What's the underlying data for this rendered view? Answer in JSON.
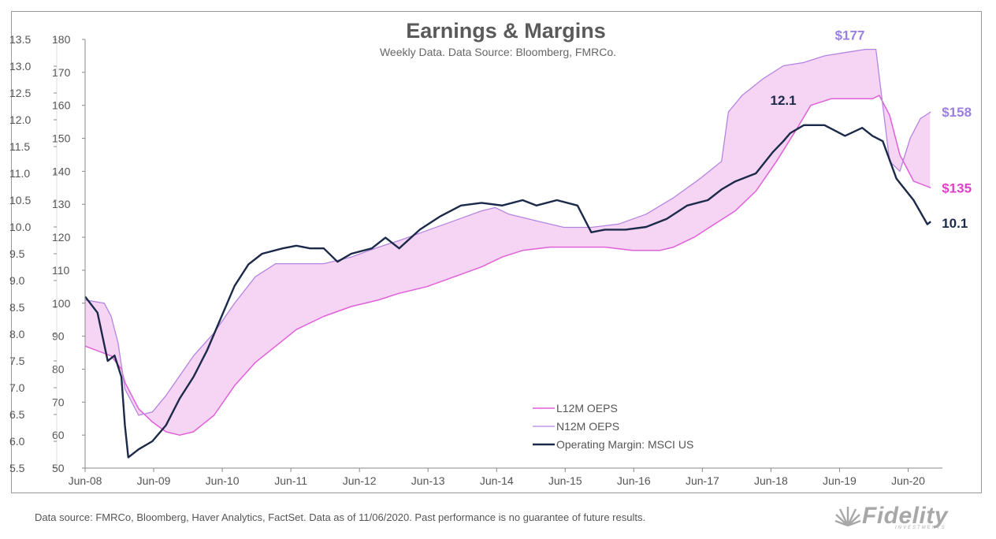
{
  "chart_data": {
    "type": "line",
    "title": "Earnings & Margins",
    "subtitle": "Weekly Data. Data Source: Bloomberg, FMRCo.",
    "left_axis": {
      "ticks": [
        5.5,
        6.0,
        6.5,
        7.0,
        7.5,
        8.0,
        8.5,
        9.0,
        9.5,
        10.0,
        10.5,
        11.0,
        11.5,
        12.0,
        12.5,
        13.0,
        13.5
      ],
      "range": [
        5.5,
        13.5
      ],
      "tick_labels": [
        "5.5",
        "6.0",
        "6.5",
        "7.0",
        "7.5",
        "8.0",
        "8.5",
        "9.0",
        "9.5",
        "10.0",
        "10.5",
        "11.0",
        "11.5",
        "12.0",
        "12.5",
        "13.0",
        "13.5"
      ]
    },
    "right_axis": {
      "ticks": [
        50,
        60,
        70,
        80,
        90,
        100,
        110,
        120,
        130,
        140,
        150,
        160,
        170,
        180
      ],
      "range": [
        50,
        180
      ],
      "tick_labels": [
        "50",
        "60",
        "70",
        "80",
        "90",
        "100",
        "110",
        "120",
        "130",
        "140",
        "150",
        "160",
        "170",
        "180"
      ]
    },
    "x_axis": {
      "range": [
        2008.42,
        2020.92
      ],
      "ticks": [
        2008.42,
        2009.42,
        2010.42,
        2011.42,
        2012.42,
        2013.42,
        2014.42,
        2015.42,
        2016.42,
        2017.42,
        2018.42,
        2019.42,
        2020.42
      ],
      "tick_labels": [
        "Jun-08",
        "Jun-09",
        "Jun-10",
        "Jun-11",
        "Jun-12",
        "Jun-13",
        "Jun-14",
        "Jun-15",
        "Jun-16",
        "Jun-17",
        "Jun-18",
        "Jun-19",
        "Jun-20"
      ]
    },
    "series": [
      {
        "name": "L12M OEPS",
        "axis": "right",
        "color": "#e060d8",
        "x": [
          2008.42,
          2008.8,
          2008.95,
          2009.0,
          2009.2,
          2009.4,
          2009.6,
          2009.8,
          2010.0,
          2010.3,
          2010.6,
          2010.9,
          2011.2,
          2011.5,
          2011.9,
          2012.3,
          2012.7,
          2013.0,
          2013.4,
          2013.8,
          2014.2,
          2014.5,
          2014.8,
          2015.2,
          2015.6,
          2016.0,
          2016.4,
          2016.8,
          2017.0,
          2017.3,
          2017.6,
          2017.9,
          2018.2,
          2018.5,
          2018.8,
          2019.0,
          2019.3,
          2019.6,
          2019.9,
          2020.0,
          2020.15,
          2020.3,
          2020.5,
          2020.75
        ],
        "y": [
          87,
          84,
          80,
          76,
          68,
          64,
          61,
          60,
          61,
          66,
          75,
          82,
          87,
          92,
          96,
          99,
          101,
          103,
          105,
          108,
          111,
          114,
          116,
          117,
          117,
          117,
          116,
          116,
          117,
          120,
          124,
          128,
          134,
          143,
          153,
          160,
          162,
          162,
          162,
          163,
          157,
          145,
          137,
          135
        ]
      },
      {
        "name": "N12M OEPS",
        "axis": "right",
        "color": "#b485e0",
        "x": [
          2008.42,
          2008.7,
          2008.8,
          2008.9,
          2009.0,
          2009.2,
          2009.4,
          2009.6,
          2009.8,
          2010.0,
          2010.3,
          2010.6,
          2010.9,
          2011.2,
          2011.5,
          2011.9,
          2012.3,
          2012.7,
          2013.0,
          2013.4,
          2013.8,
          2014.2,
          2014.4,
          2014.6,
          2015.0,
          2015.4,
          2015.8,
          2016.2,
          2016.6,
          2017.0,
          2017.4,
          2017.7,
          2017.8,
          2018.0,
          2018.3,
          2018.6,
          2018.9,
          2019.2,
          2019.5,
          2019.8,
          2019.95,
          2020.05,
          2020.15,
          2020.3,
          2020.45,
          2020.6,
          2020.75
        ],
        "y": [
          101,
          100,
          96,
          88,
          74,
          66,
          67,
          72,
          78,
          84,
          91,
          100,
          108,
          112,
          112,
          112,
          114,
          117,
          119,
          122,
          125,
          128,
          129,
          127,
          125,
          123,
          123,
          124,
          127,
          132,
          138,
          143,
          158,
          163,
          168,
          172,
          173,
          175,
          176,
          177,
          177,
          160,
          143,
          140,
          150,
          156,
          158
        ]
      },
      {
        "name": "Operating Margin: MSCI US",
        "axis": "left",
        "color": "#1c2a4a",
        "x": [
          2008.42,
          2008.6,
          2008.75,
          2008.85,
          2008.95,
          2009.0,
          2009.05,
          2009.2,
          2009.4,
          2009.6,
          2009.8,
          2010.0,
          2010.2,
          2010.4,
          2010.6,
          2010.8,
          2011.0,
          2011.3,
          2011.5,
          2011.7,
          2011.9,
          2012.1,
          2012.3,
          2012.6,
          2012.8,
          2013.0,
          2013.3,
          2013.6,
          2013.9,
          2014.2,
          2014.5,
          2014.8,
          2015.0,
          2015.3,
          2015.6,
          2015.8,
          2016.0,
          2016.3,
          2016.6,
          2016.9,
          2017.2,
          2017.5,
          2017.7,
          2017.9,
          2018.2,
          2018.45,
          2018.6,
          2018.7,
          2018.9,
          2019.2,
          2019.5,
          2019.75,
          2019.9,
          2020.05,
          2020.25,
          2020.5,
          2020.7,
          2020.75
        ],
        "y": [
          8.7,
          8.4,
          7.5,
          7.6,
          7.2,
          6.3,
          5.7,
          5.85,
          6.0,
          6.3,
          6.8,
          7.2,
          7.7,
          8.3,
          8.9,
          9.3,
          9.5,
          9.6,
          9.65,
          9.6,
          9.6,
          9.35,
          9.5,
          9.6,
          9.8,
          9.6,
          9.95,
          10.2,
          10.4,
          10.45,
          10.4,
          10.5,
          10.4,
          10.5,
          10.4,
          9.9,
          9.95,
          9.95,
          10.0,
          10.15,
          10.4,
          10.5,
          10.7,
          10.85,
          11.0,
          11.4,
          11.6,
          11.75,
          11.9,
          11.9,
          11.7,
          11.85,
          11.7,
          11.6,
          10.9,
          10.5,
          10.05,
          10.1
        ]
      }
    ],
    "shaded_band": {
      "between": [
        "L12M OEPS",
        "N12M OEPS"
      ],
      "color": "#f5cdf2"
    },
    "annotations": [
      {
        "text": "$177",
        "color": "#9b7fe0"
      },
      {
        "text": "12.1",
        "color": "#1c2a4a"
      },
      {
        "text": "$158",
        "color": "#9b7fe0"
      },
      {
        "text": "$135",
        "color": "#e040c8"
      },
      {
        "text": "10.1",
        "color": "#1c2a4a"
      }
    ],
    "legend": {
      "placement": "bottom-center",
      "entries": [
        "L12M OEPS",
        "N12M OEPS",
        "Operating Margin: MSCI US"
      ]
    },
    "grid": false
  },
  "footer": {
    "text": "Data source: FMRCo, Bloomberg, Haver Analytics, FactSet. Data as of 11/06/2020. Past performance is no guarantee of future results."
  },
  "logo": {
    "word": "Fidelity",
    "sub": "INVESTMENTS",
    "color": "#a8a8a8"
  }
}
